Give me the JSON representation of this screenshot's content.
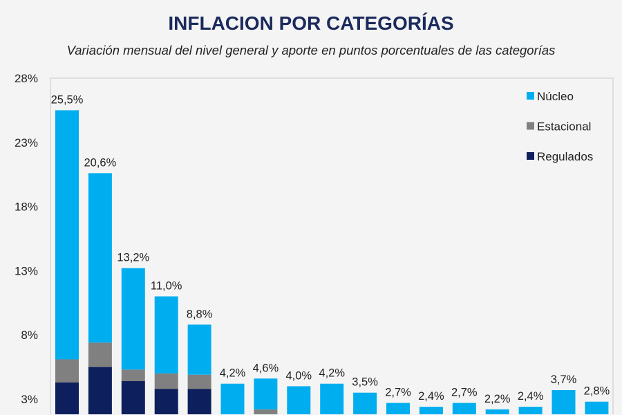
{
  "chart_data": {
    "type": "bar",
    "stacked": true,
    "title": "INFLACION POR CATEGORÍAS",
    "subtitle": "Variación mensual del nivel general y aporte en puntos porcentuales de las categorías",
    "ylim": [
      -2,
      28
    ],
    "yticks": [
      "3%",
      "8%",
      "13%",
      "18%",
      "23%",
      "28%"
    ],
    "ytick_values": [
      3,
      8,
      13,
      18,
      23,
      28
    ],
    "grid": false,
    "legend": "top-right",
    "totals_labels": [
      "25,5%",
      "20,6%",
      "13,2%",
      "11,0%",
      "8,8%",
      "4,2%",
      "4,6%",
      "4,0%",
      "4,2%",
      "3,5%",
      "2,7%",
      "2,4%",
      "2,7%",
      "2,2%",
      "2,4%",
      "3,7%",
      "2,8%"
    ],
    "series": [
      {
        "name": "Regulados",
        "color": "#0d1f5c",
        "values": [
          4.3,
          5.5,
          4.4,
          3.8,
          3.8,
          0,
          1.6,
          0,
          0,
          0,
          0,
          0,
          0,
          0,
          0,
          0,
          0
        ]
      },
      {
        "name": "Estacional",
        "color": "#808080",
        "values": [
          1.8,
          1.9,
          0.9,
          1.2,
          1.1,
          0,
          0.6,
          0,
          0,
          0,
          0,
          0,
          0,
          0,
          0,
          0,
          0
        ]
      },
      {
        "name": "Núcleo",
        "color": "#00aeef",
        "values": [
          19.4,
          13.2,
          7.9,
          6.0,
          3.9,
          4.2,
          2.4,
          4.0,
          4.2,
          3.5,
          2.7,
          2.4,
          2.7,
          2.2,
          2.4,
          3.7,
          2.8
        ]
      }
    ],
    "legend_order": [
      "Núcleo",
      "Estacional",
      "Regulados"
    ]
  }
}
